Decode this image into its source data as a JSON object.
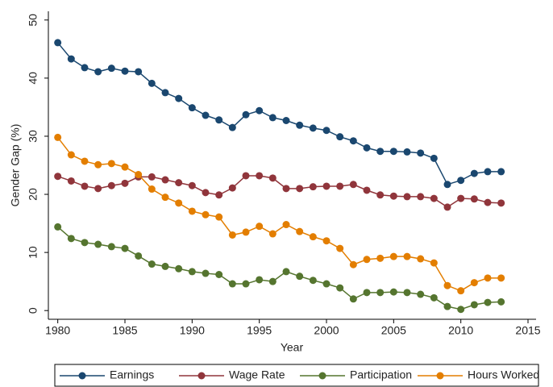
{
  "chart_data": {
    "type": "line",
    "y_label": "Gender Gap (%)",
    "x_label": "Year",
    "x": [
      1980,
      1981,
      1982,
      1983,
      1984,
      1985,
      1986,
      1987,
      1988,
      1989,
      1990,
      1991,
      1992,
      1993,
      1994,
      1995,
      1996,
      1997,
      1998,
      1999,
      2000,
      2001,
      2002,
      2003,
      2004,
      2005,
      2006,
      2007,
      2008,
      2009,
      2010,
      2011,
      2012,
      2013
    ],
    "series": [
      {
        "name": "Earnings",
        "color": "#1a476f",
        "values": [
          46.1,
          43.3,
          41.8,
          41.1,
          41.7,
          41.2,
          41.1,
          39.1,
          37.5,
          36.5,
          34.9,
          33.6,
          32.8,
          31.5,
          33.7,
          34.4,
          33.2,
          32.7,
          31.9,
          31.4,
          31.0,
          29.9,
          29.2,
          28.0,
          27.4,
          27.4,
          27.3,
          27.1,
          26.2,
          21.7,
          22.4,
          23.6,
          23.9,
          23.9
        ]
      },
      {
        "name": "Wage Rate",
        "color": "#90353b",
        "values": [
          23.1,
          22.3,
          21.4,
          21.0,
          21.5,
          21.9,
          23.0,
          23.0,
          22.5,
          22.0,
          21.5,
          20.3,
          19.9,
          21.1,
          23.2,
          23.2,
          22.8,
          21.0,
          21.0,
          21.3,
          21.4,
          21.4,
          21.7,
          20.7,
          19.9,
          19.7,
          19.6,
          19.6,
          19.3,
          17.8,
          19.3,
          19.2,
          18.6,
          18.5
        ]
      },
      {
        "name": "Participation",
        "color": "#55752f",
        "values": [
          14.4,
          12.4,
          11.7,
          11.4,
          11.0,
          10.7,
          9.4,
          8.0,
          7.6,
          7.2,
          6.7,
          6.4,
          6.2,
          4.6,
          4.6,
          5.3,
          5.0,
          6.7,
          5.9,
          5.2,
          4.6,
          3.9,
          2.0,
          3.1,
          3.1,
          3.2,
          3.1,
          2.8,
          2.2,
          0.7,
          0.2,
          1.0,
          1.4,
          1.5
        ]
      },
      {
        "name": "Hours Worked",
        "color": "#e37e00",
        "values": [
          29.8,
          26.8,
          25.7,
          25.1,
          25.3,
          24.7,
          23.4,
          20.9,
          19.5,
          18.5,
          17.1,
          16.5,
          16.1,
          13.0,
          13.5,
          14.5,
          13.2,
          14.8,
          13.6,
          12.7,
          12.0,
          10.7,
          7.9,
          8.8,
          9.0,
          9.3,
          9.3,
          8.9,
          8.2,
          4.3,
          3.4,
          4.8,
          5.6,
          5.6
        ]
      }
    ],
    "xlim": [
      1979.3,
      2015.6
    ],
    "xticks": [
      1980,
      1985,
      1990,
      1995,
      2000,
      2005,
      2010,
      2015
    ],
    "ylim": [
      -1.5,
      51.5
    ],
    "yticks": [
      0,
      10,
      20,
      30,
      40,
      50
    ],
    "grid": false,
    "legend": "bottom"
  }
}
